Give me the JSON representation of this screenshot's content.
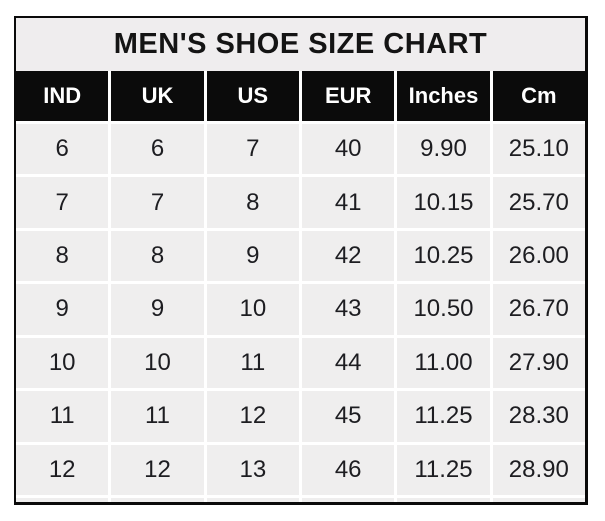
{
  "title": "MEN'S SHOE SIZE CHART",
  "colors": {
    "title_bg": "#efedee",
    "title_text": "#141414",
    "header_bg": "#0b0b0b",
    "header_text": "#ffffff",
    "cell_bg": "#efeeee",
    "cell_text": "#1d1d21",
    "grid_line": "#ffffff",
    "border": "#0a0a0a"
  },
  "chart_data": {
    "type": "table",
    "title": "MEN'S SHOE SIZE CHART",
    "columns": [
      "IND",
      "UK",
      "US",
      "EUR",
      "Inches",
      "Cm"
    ],
    "rows": [
      [
        "6",
        "6",
        "7",
        "40",
        "9.90",
        "25.10"
      ],
      [
        "7",
        "7",
        "8",
        "41",
        "10.15",
        "25.70"
      ],
      [
        "8",
        "8",
        "9",
        "42",
        "10.25",
        "26.00"
      ],
      [
        "9",
        "9",
        "10",
        "43",
        "10.50",
        "26.70"
      ],
      [
        "10",
        "10",
        "11",
        "44",
        "11.00",
        "27.90"
      ],
      [
        "11",
        "11",
        "12",
        "45",
        "11.25",
        "28.30"
      ],
      [
        "12",
        "12",
        "13",
        "46",
        "11.25",
        "28.90"
      ]
    ]
  }
}
